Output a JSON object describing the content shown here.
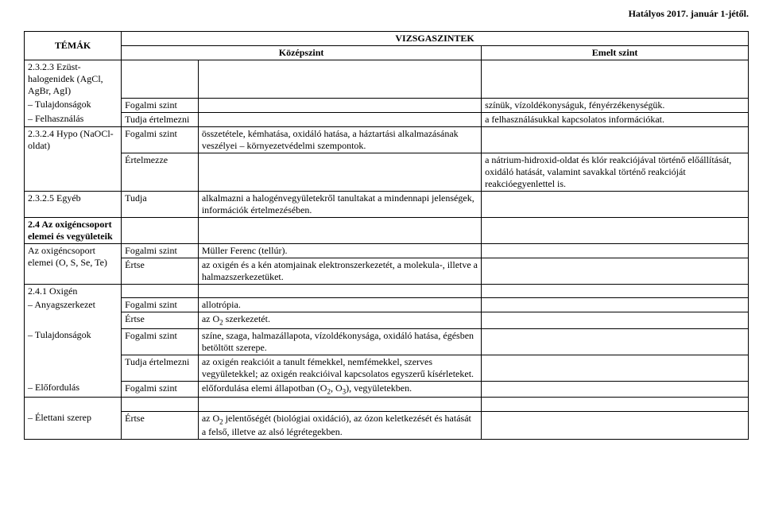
{
  "headerNote": "Hatályos 2017. január 1-jétől.",
  "header": {
    "temak": "TÉMÁK",
    "vizsgaszintek": "VIZSGASZINTEK",
    "kozepszint": "Középszint",
    "emeltszint": "Emelt szint"
  },
  "rows": {
    "r1_col1": "2.3.2.3 Ezüst-halogenidek (AgCl, AgBr, AgI)",
    "r2_col1a": "– Tulajdonságok",
    "r2_col2": "Fogalmi szint",
    "r2_col4": "színük, vízoldékonyságuk, fényérzékenységük.",
    "r3_col1a": "– Felhasználás",
    "r3_col2": "Tudja értelmezni",
    "r3_col4": "a felhasználásukkal kapcsolatos információkat.",
    "r4_col1": "2.3.2.4 Hypo (NaOCl-oldat)",
    "r4_col2": "Fogalmi szint",
    "r4_col3": "összetétele, kémhatása, oxidáló hatása, a háztartási alkalmazásának veszélyei – környezetvédelmi szempontok.",
    "r5_col2": "Értelmezze",
    "r5_col4": "a nátrium-hidroxid-oldat és klór reakciójával történő előállítását, oxidáló hatását, valamint savakkal történő reakcióját reakcióegyenlettel is.",
    "r6_col1": "2.3.2.5 Egyéb",
    "r6_col2": "Tudja",
    "r6_col3": "alkalmazni a halogénvegyületekről tanultakat a mindennapi jelenségek, információk értelmezésében.",
    "r7_col1": "2.4 Az oxigéncsoport elemei és vegyületeik",
    "r8_col1": "Az oxigéncsoport elemei (O, S, Se, Te)",
    "r8_col2": "Fogalmi szint",
    "r8_col3": "Müller Ferenc (tellúr).",
    "r9_col2": "Értse",
    "r9_col3": "az oxigén és a kén atomjainak elektronszerkezetét, a molekula-, illetve a halmazszerkezetüket.",
    "r10_col1": "2.4.1 Oxigén",
    "r11_col1": "– Anyagszerkezet",
    "r11_col2": "Fogalmi szint",
    "r11_col3": "allotrópia.",
    "r12_col2": "Értse",
    "r12_col3_a": "az O",
    "r12_col3_b": " szerkezetét.",
    "r13_col1": "– Tulajdonságok",
    "r13_col2": "Fogalmi szint",
    "r13_col3": "színe, szaga, halmazállapota, vízoldékonysága, oxidáló hatása, égésben betöltött szerepe.",
    "r14_col2": "Tudja értelmezni",
    "r14_col3": "az oxigén reakcióit a tanult fémekkel, nemfémekkel, szerves vegyületekkel; az oxigén reakcióival kapcsolatos egyszerű kísérleteket.",
    "r15_col1": "– Előfordulás",
    "r15_col2": "Fogalmi szint",
    "r15_col3_a": "előfordulása elemi állapotban (O",
    "r15_col3_b": ", O",
    "r15_col3_c": "), vegyületekben.",
    "r16_col1": "– Élettani szerep",
    "r16_col2": "Értse",
    "r16_col3_a": "az O",
    "r16_col3_b": " jelentőségét (biológiai oxidáció), az ózon keletkezését és hatását a felső, illetve az alsó légrétegekben.",
    "sub2": "2",
    "sub3": "3"
  }
}
